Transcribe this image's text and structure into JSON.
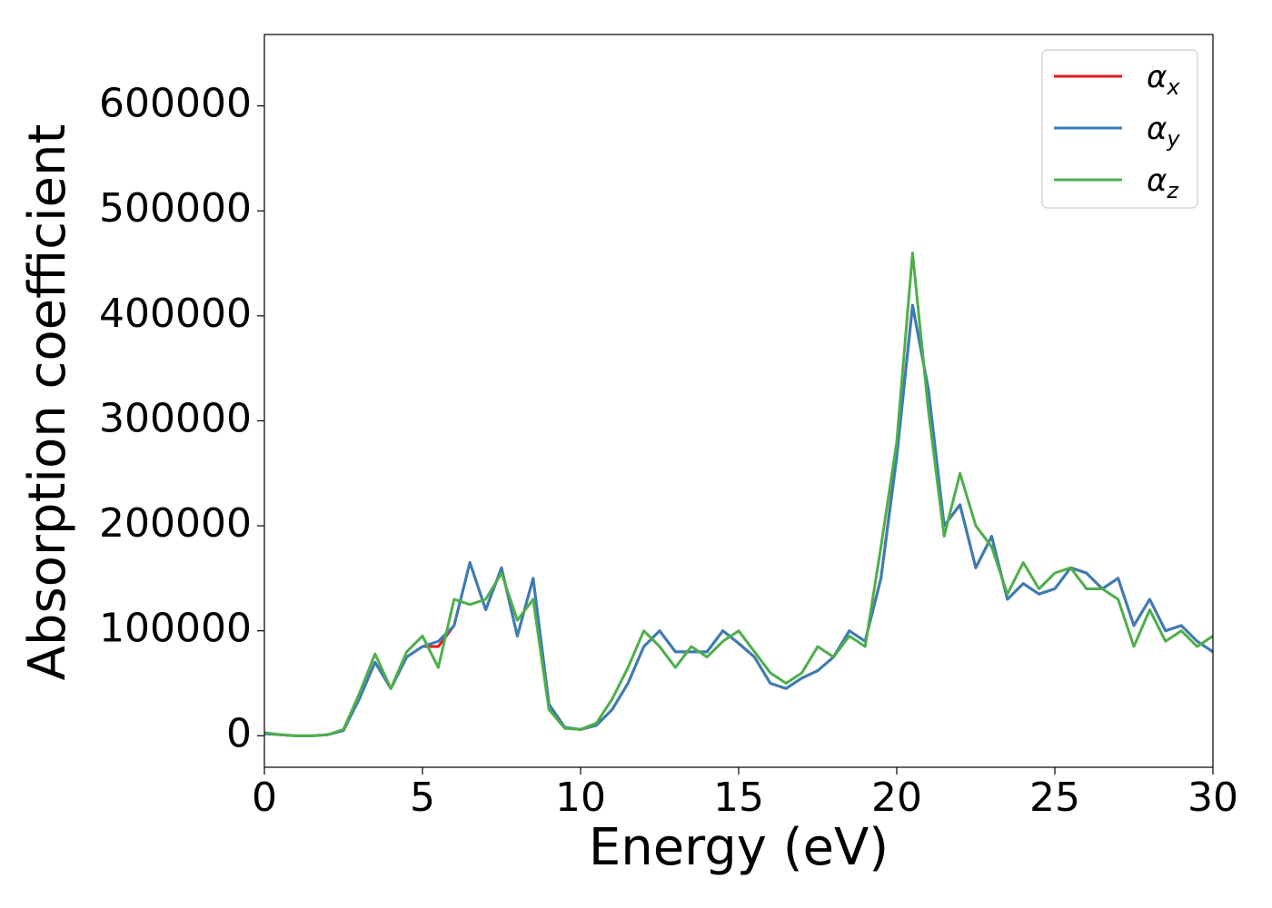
{
  "chart_data": {
    "type": "line",
    "xlabel": "Energy (eV)",
    "ylabel": "Absorption coefficient",
    "xlim": [
      0,
      30
    ],
    "ylim": [
      -30000,
      668000
    ],
    "xticks": [
      0,
      5,
      10,
      15,
      20,
      25,
      30
    ],
    "yticks": [
      0,
      100000,
      200000,
      300000,
      400000,
      500000,
      600000
    ],
    "legend": "upper right",
    "x": [
      0,
      0.5,
      1,
      1.5,
      2,
      2.5,
      3,
      3.5,
      4,
      4.5,
      5,
      5.5,
      6,
      6.5,
      7,
      7.5,
      8,
      8.5,
      9,
      9.5,
      10,
      10.5,
      11,
      11.5,
      12,
      12.5,
      13,
      13.5,
      14,
      14.5,
      15,
      15.5,
      16,
      16.5,
      17,
      17.5,
      18,
      18.5,
      19,
      19.5,
      20,
      20.5,
      21,
      21.5,
      22,
      22.5,
      23,
      23.5,
      24,
      24.5,
      25,
      25.5,
      26,
      26.5,
      27,
      27.5,
      28,
      28.5,
      29,
      29.5,
      30
    ],
    "series": [
      {
        "name": "αx",
        "color": "#e41a1c",
        "values": [
          2000,
          1000,
          0,
          0,
          1000,
          5000,
          35000,
          70000,
          45000,
          75000,
          85000,
          85000,
          105000,
          165000,
          120000,
          160000,
          95000,
          150000,
          30000,
          8000,
          6000,
          10000,
          25000,
          50000,
          85000,
          100000,
          80000,
          80000,
          80000,
          100000,
          88000,
          75000,
          50000,
          45000,
          55000,
          62000,
          75000,
          100000,
          90000,
          150000,
          268000,
          410000,
          330000,
          200000,
          220000,
          160000,
          190000,
          130000,
          145000,
          135000,
          140000,
          160000,
          155000,
          140000,
          150000,
          105000,
          130000,
          100000,
          105000,
          90000,
          80000
        ]
      },
      {
        "name": "αy",
        "color": "#377eb8",
        "values": [
          2000,
          1000,
          0,
          0,
          1000,
          5000,
          35000,
          70000,
          45000,
          75000,
          85000,
          90000,
          105000,
          165000,
          120000,
          160000,
          95000,
          150000,
          30000,
          8000,
          6000,
          10000,
          25000,
          50000,
          85000,
          100000,
          80000,
          80000,
          80000,
          100000,
          88000,
          75000,
          50000,
          45000,
          55000,
          62000,
          75000,
          100000,
          90000,
          150000,
          265000,
          410000,
          330000,
          200000,
          220000,
          160000,
          190000,
          130000,
          145000,
          135000,
          140000,
          160000,
          155000,
          140000,
          150000,
          105000,
          130000,
          100000,
          105000,
          90000,
          80000
        ]
      },
      {
        "name": "αz",
        "color": "#4daf4a",
        "values": [
          3000,
          1000,
          0,
          0,
          1000,
          6000,
          40000,
          78000,
          45000,
          80000,
          95000,
          65000,
          130000,
          125000,
          130000,
          155000,
          110000,
          130000,
          25000,
          7000,
          6000,
          12000,
          35000,
          65000,
          100000,
          85000,
          65000,
          85000,
          75000,
          90000,
          100000,
          80000,
          60000,
          50000,
          60000,
          85000,
          75000,
          95000,
          85000,
          180000,
          280000,
          460000,
          310000,
          190000,
          250000,
          200000,
          180000,
          135000,
          165000,
          140000,
          155000,
          160000,
          140000,
          140000,
          130000,
          85000,
          120000,
          90000,
          100000,
          85000,
          95000
        ]
      }
    ]
  }
}
